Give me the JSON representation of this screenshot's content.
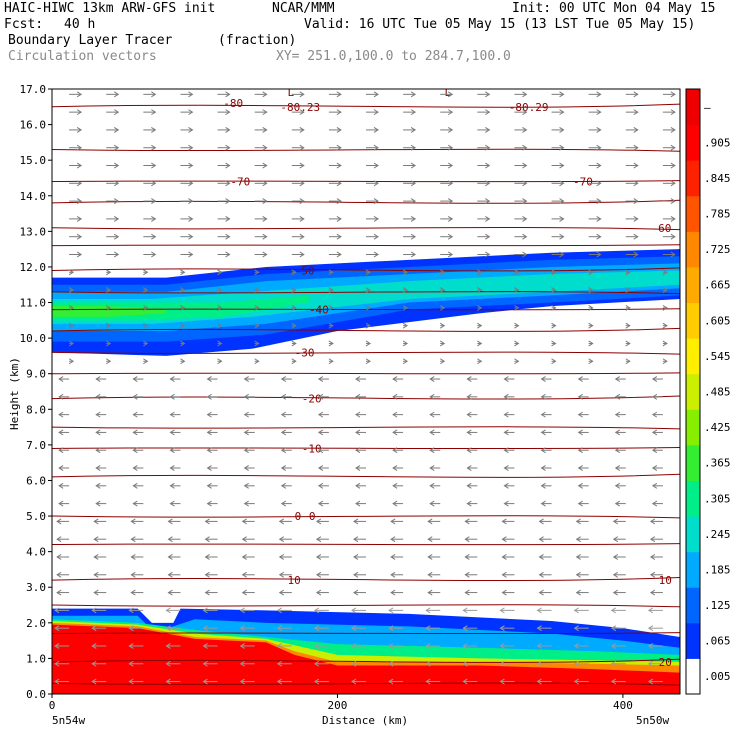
{
  "header": {
    "model": "HAIC-HIWC 13km ARW-GFS init",
    "org": "NCAR/MMM",
    "init": "Init: 00 UTC Mon 04 May 15",
    "fcst_label": "Fcst:",
    "fcst_value": "40 h",
    "valid": "Valid: 16 UTC Tue 05 May 15 (13 LST Tue 05 May 15)",
    "field": "Boundary Layer Tracer",
    "units": "(fraction)",
    "vectors": "Circulation vectors",
    "xy": "XY= 251.0,100.0 to 284.7,100.0"
  },
  "chart_data": {
    "type": "heatmap",
    "ylabel": "Height (km)",
    "xlabel": "Distance (km)",
    "ylim": [
      0,
      17
    ],
    "xlim": [
      0,
      440
    ],
    "y_ticks": [
      "0.0",
      "1.0",
      "2.0",
      "3.0",
      "4.0",
      "5.0",
      "6.0",
      "7.0",
      "8.0",
      "9.0",
      "10.0",
      "11.0",
      "12.0",
      "13.0",
      "14.0",
      "15.0",
      "16.0",
      "17.0"
    ],
    "x_ticks": [
      {
        "value": 0,
        "label": "0"
      },
      {
        "value": 200,
        "label": "200"
      },
      {
        "value": 400,
        "label": "400"
      }
    ],
    "x_end_labels": {
      "left": "5n54w",
      "right": "5n50w"
    },
    "colorbar": {
      "labels": [
        ".005",
        ".065",
        ".125",
        ".185",
        ".245",
        ".305",
        ".365",
        ".425",
        ".485",
        ".545",
        ".605",
        ".665",
        ".725",
        ".785",
        ".845",
        ".905",
        "–"
      ],
      "colors": [
        "#ffffff",
        "#0033ff",
        "#0066ff",
        "#00aaff",
        "#00ddcc",
        "#00ee88",
        "#33ee33",
        "#88ee00",
        "#ccee00",
        "#ffee00",
        "#ffcc00",
        "#ffaa00",
        "#ff8800",
        "#ff5500",
        "#ff2200",
        "#ff0000",
        "#ee0000"
      ]
    },
    "temperature_contours": [
      {
        "label": "-80",
        "height": 16.6
      },
      {
        "label": "-80.23",
        "height": 16.5
      },
      {
        "label": "-80.29",
        "height": 16.5
      },
      {
        "label": "-70",
        "height": 14.4
      },
      {
        "label": "-70",
        "height": 14.4
      },
      {
        "label": "-60",
        "height": 13.1
      },
      {
        "label": "-50",
        "height": 11.9
      },
      {
        "label": "-40",
        "height": 10.8
      },
      {
        "label": "-30",
        "height": 9.6
      },
      {
        "label": "-20",
        "height": 8.3
      },
      {
        "label": "-10",
        "height": 6.9
      },
      {
        "label": "0",
        "height": 5.0
      },
      {
        "label": "0",
        "height": 5.0
      },
      {
        "label": "10",
        "height": 3.2
      },
      {
        "label": "10",
        "height": 3.2
      },
      {
        "label": "20",
        "height": 0.9
      }
    ],
    "low_markers": [
      {
        "label": "L",
        "x": 165
      },
      {
        "label": "L",
        "x": 275
      }
    ]
  }
}
